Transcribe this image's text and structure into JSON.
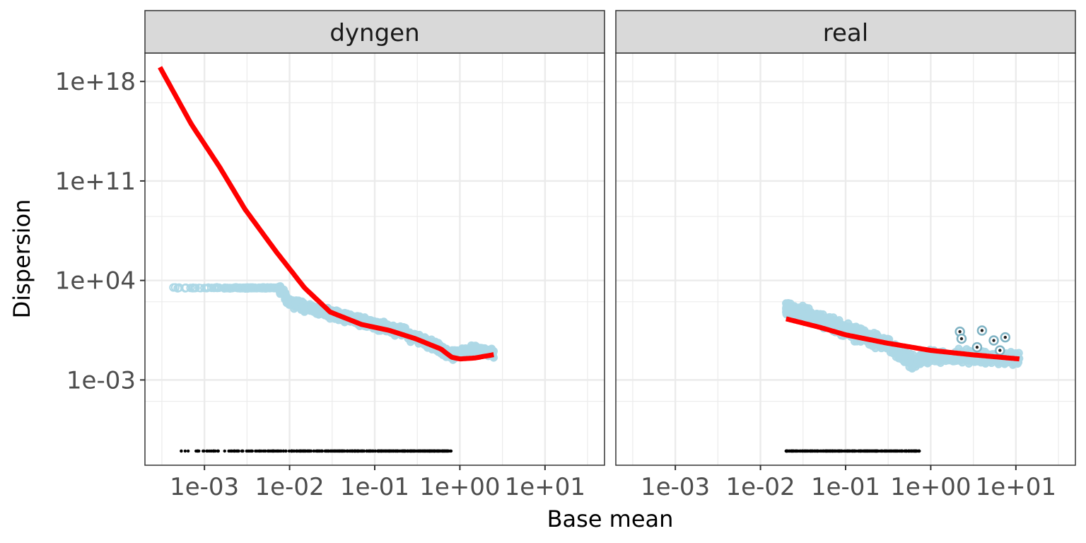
{
  "chart_data": {
    "type": "scatter",
    "xlabel": "Base mean",
    "ylabel": "Dispersion",
    "x_scale": "log10",
    "y_scale": "log10",
    "xlim": [
      0.0002,
      50
    ],
    "ylim": [
      1e-09,
      1e+20
    ],
    "x_ticks": [
      0.001,
      0.01,
      0.1,
      1,
      10
    ],
    "x_tick_labels": [
      "1e-03",
      "1e-02",
      "1e-01",
      "1e+00",
      "1e+01"
    ],
    "y_ticks": [
      0.001,
      10000,
      100000000000,
      1000000000000000000
    ],
    "y_tick_labels": [
      "1e-03",
      "1e+04",
      "1e+11",
      "1e+18"
    ],
    "grid": true,
    "colors": {
      "gene_points": "#add8e6",
      "fit_line": "#ff0000",
      "final_points": "#000000",
      "strip_fill": "#d9d9d9",
      "grid": "#ebebeb",
      "panel_border": "#333333"
    },
    "panels": [
      {
        "name": "dyngen",
        "gene_points_plateau": {
          "x_range": [
            0.0003,
            0.0075
          ],
          "y": 3000
        },
        "gene_points_trend": [
          {
            "x": 0.0075,
            "y": 3000
          },
          {
            "x": 0.01,
            "y": 300
          },
          {
            "x": 0.03,
            "y": 50
          },
          {
            "x": 0.1,
            "y": 8
          },
          {
            "x": 0.2,
            "y": 3
          },
          {
            "x": 0.5,
            "y": 0.25
          },
          {
            "x": 0.8,
            "y": 0.06
          },
          {
            "x": 1.5,
            "y": 0.12
          },
          {
            "x": 2.5,
            "y": 0.08
          }
        ],
        "fit_line": [
          {
            "x": 0.0003,
            "y": 1e+19
          },
          {
            "x": 0.0007,
            "y": 1000000000000000.0
          },
          {
            "x": 0.0015,
            "y": 1000000000000.0
          },
          {
            "x": 0.003,
            "y": 1000000000.0
          },
          {
            "x": 0.007,
            "y": 1000000.0
          },
          {
            "x": 0.015,
            "y": 3000.0
          },
          {
            "x": 0.03,
            "y": 60
          },
          {
            "x": 0.07,
            "y": 8
          },
          {
            "x": 0.15,
            "y": 3
          },
          {
            "x": 0.3,
            "y": 0.8
          },
          {
            "x": 0.6,
            "y": 0.15
          },
          {
            "x": 0.8,
            "y": 0.04
          },
          {
            "x": 1.0,
            "y": 0.03
          },
          {
            "x": 1.5,
            "y": 0.035
          },
          {
            "x": 2.5,
            "y": 0.06
          }
        ],
        "final_points": {
          "x_range": [
            0.0003,
            0.8
          ],
          "y": 1e-08
        }
      },
      {
        "name": "real",
        "gene_points_trend": [
          {
            "x": 0.02,
            "y": 100
          },
          {
            "x": 0.05,
            "y": 20
          },
          {
            "x": 0.1,
            "y": 3
          },
          {
            "x": 0.3,
            "y": 0.4
          },
          {
            "x": 0.6,
            "y": 0.02
          },
          {
            "x": 1.0,
            "y": 0.05
          },
          {
            "x": 3.0,
            "y": 0.04
          },
          {
            "x": 11.0,
            "y": 0.03
          }
        ],
        "outliers": [
          {
            "x": 2.2,
            "y": 2.5
          },
          {
            "x": 4.0,
            "y": 3.0
          },
          {
            "x": 2.3,
            "y": 0.8
          },
          {
            "x": 5.5,
            "y": 0.6
          },
          {
            "x": 7.5,
            "y": 1.0
          },
          {
            "x": 6.5,
            "y": 0.12
          },
          {
            "x": 3.5,
            "y": 0.2
          }
        ],
        "fit_line": [
          {
            "x": 0.02,
            "y": 20
          },
          {
            "x": 0.05,
            "y": 5
          },
          {
            "x": 0.1,
            "y": 1.5
          },
          {
            "x": 0.3,
            "y": 0.4
          },
          {
            "x": 1.0,
            "y": 0.12
          },
          {
            "x": 3.0,
            "y": 0.06
          },
          {
            "x": 11.0,
            "y": 0.03
          }
        ],
        "final_points": {
          "x_range": [
            0.02,
            0.75
          ],
          "y": 1e-08
        }
      }
    ]
  }
}
